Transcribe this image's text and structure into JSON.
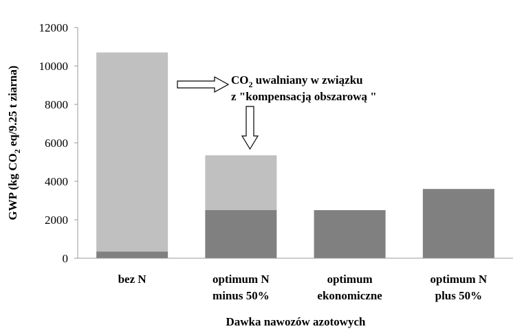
{
  "chart_data": {
    "type": "stacked-bar",
    "categories": [
      [
        "bez N"
      ],
      [
        "optimum N",
        "minus 50%"
      ],
      [
        "optimum",
        "ekonomiczne"
      ],
      [
        "optimum N",
        "plus 50%"
      ]
    ],
    "series": [
      {
        "color": "#808080",
        "values": [
          350,
          2500,
          2500,
          3600
        ]
      },
      {
        "color": "#c0c0c0",
        "values": [
          10350,
          2850,
          0,
          0
        ]
      }
    ],
    "ylim": [
      0,
      12000
    ],
    "yticks": [
      0,
      2000,
      4000,
      6000,
      8000,
      10000,
      12000
    ],
    "y_label": [
      "GWP (kg CO",
      "2",
      " eq/9.25 t  ziarna)"
    ],
    "x_label": "Dawka nawozów azotowych",
    "annotation": {
      "line1": [
        "CO",
        "2",
        " uwalniany w związku"
      ],
      "line2": "z \"kompensacją obszarową \""
    }
  }
}
